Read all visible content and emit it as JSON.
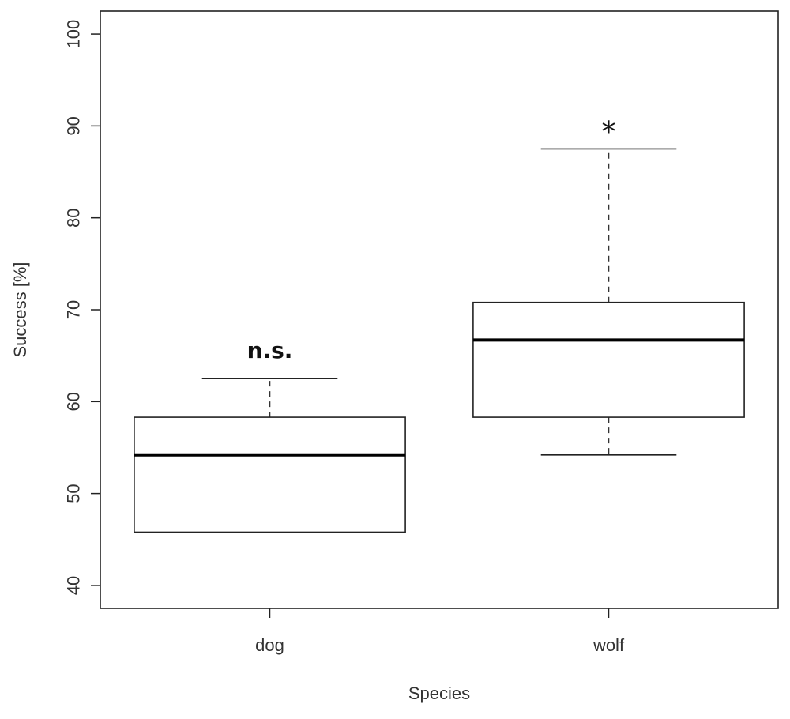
{
  "chart_data": {
    "type": "boxplot",
    "title": "",
    "xlabel": "Species",
    "ylabel": "Success [%]",
    "ylim": [
      37.5,
      102.5
    ],
    "yticks": [
      40,
      50,
      60,
      70,
      80,
      90,
      100
    ],
    "grid": false,
    "categories": [
      "dog",
      "wolf"
    ],
    "boxes": [
      {
        "category": "dog",
        "whisker_low": 45.8,
        "q1": 45.8,
        "median": 54.2,
        "q3": 58.3,
        "whisker_high": 62.5,
        "annotation": "n.s."
      },
      {
        "category": "wolf",
        "whisker_low": 54.2,
        "q1": 58.3,
        "median": 66.7,
        "q3": 70.8,
        "whisker_high": 87.5,
        "annotation": "*"
      }
    ]
  }
}
